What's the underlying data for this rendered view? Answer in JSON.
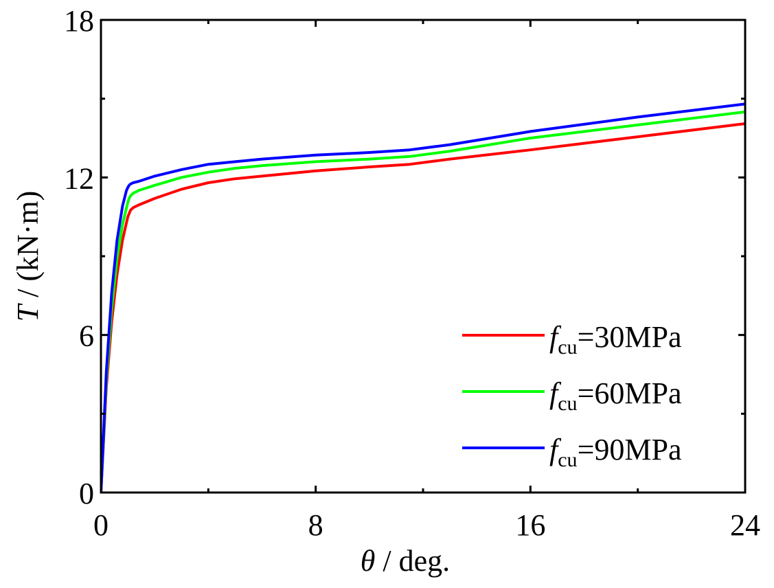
{
  "chart_data": {
    "type": "line",
    "title": "",
    "xlabel": {
      "symbol": "θ",
      "rest": " / deg."
    },
    "ylabel": {
      "symbol": "T",
      "rest": " / (kN·m)"
    },
    "xlim": [
      0,
      24
    ],
    "ylim": [
      0,
      18
    ],
    "xticks": [
      0,
      8,
      16,
      24
    ],
    "xtick_labels": [
      "0",
      "8",
      "16",
      "24"
    ],
    "yticks": [
      0,
      6,
      12,
      18
    ],
    "ytick_labels": [
      "0",
      "6",
      "12",
      "18"
    ],
    "grid": false,
    "legend_position": "bottom-right",
    "series": [
      {
        "name": "f_cu=30MPa",
        "legend": {
          "sym": "f",
          "sub": "cu",
          "rest": "=30MPa"
        },
        "color": "#ff0000",
        "x": [
          0,
          0.2,
          0.4,
          0.6,
          0.8,
          1.0,
          1.1,
          1.2,
          1.4,
          2.0,
          3.0,
          4.0,
          5.0,
          6.0,
          8.0,
          10.0,
          11.5,
          13.0,
          16.0,
          20.0,
          24.0
        ],
        "y": [
          0,
          4.0,
          6.5,
          8.3,
          9.6,
          10.5,
          10.75,
          10.85,
          10.95,
          11.2,
          11.55,
          11.8,
          11.95,
          12.05,
          12.25,
          12.4,
          12.5,
          12.7,
          13.05,
          13.55,
          14.05
        ]
      },
      {
        "name": "f_cu=60MPa",
        "legend": {
          "sym": "f",
          "sub": "cu",
          "rest": "=60MPa"
        },
        "color": "#00ff00",
        "x": [
          0,
          0.2,
          0.4,
          0.6,
          0.8,
          1.0,
          1.05,
          1.1,
          1.2,
          1.4,
          2.0,
          3.0,
          4.0,
          5.0,
          6.0,
          8.0,
          10.0,
          11.5,
          13.0,
          16.0,
          20.0,
          24.0
        ],
        "y": [
          0,
          4.3,
          7.0,
          8.9,
          10.2,
          11.05,
          11.2,
          11.3,
          11.4,
          11.5,
          11.7,
          12.0,
          12.2,
          12.35,
          12.45,
          12.6,
          12.7,
          12.8,
          13.0,
          13.5,
          14.0,
          14.5
        ]
      },
      {
        "name": "f_cu=90MPa",
        "legend": {
          "sym": "f",
          "sub": "cu",
          "rest": "=90MPa"
        },
        "color": "#0000ff",
        "x": [
          0,
          0.2,
          0.4,
          0.6,
          0.8,
          0.95,
          1.0,
          1.05,
          1.1,
          1.2,
          1.4,
          2.0,
          3.0,
          4.0,
          5.0,
          6.0,
          8.0,
          10.0,
          11.5,
          13.0,
          16.0,
          20.0,
          24.0
        ],
        "y": [
          0,
          4.6,
          7.6,
          9.6,
          10.9,
          11.5,
          11.62,
          11.7,
          11.75,
          11.8,
          11.85,
          12.05,
          12.3,
          12.5,
          12.6,
          12.7,
          12.85,
          12.95,
          13.05,
          13.25,
          13.75,
          14.3,
          14.8
        ]
      }
    ]
  }
}
